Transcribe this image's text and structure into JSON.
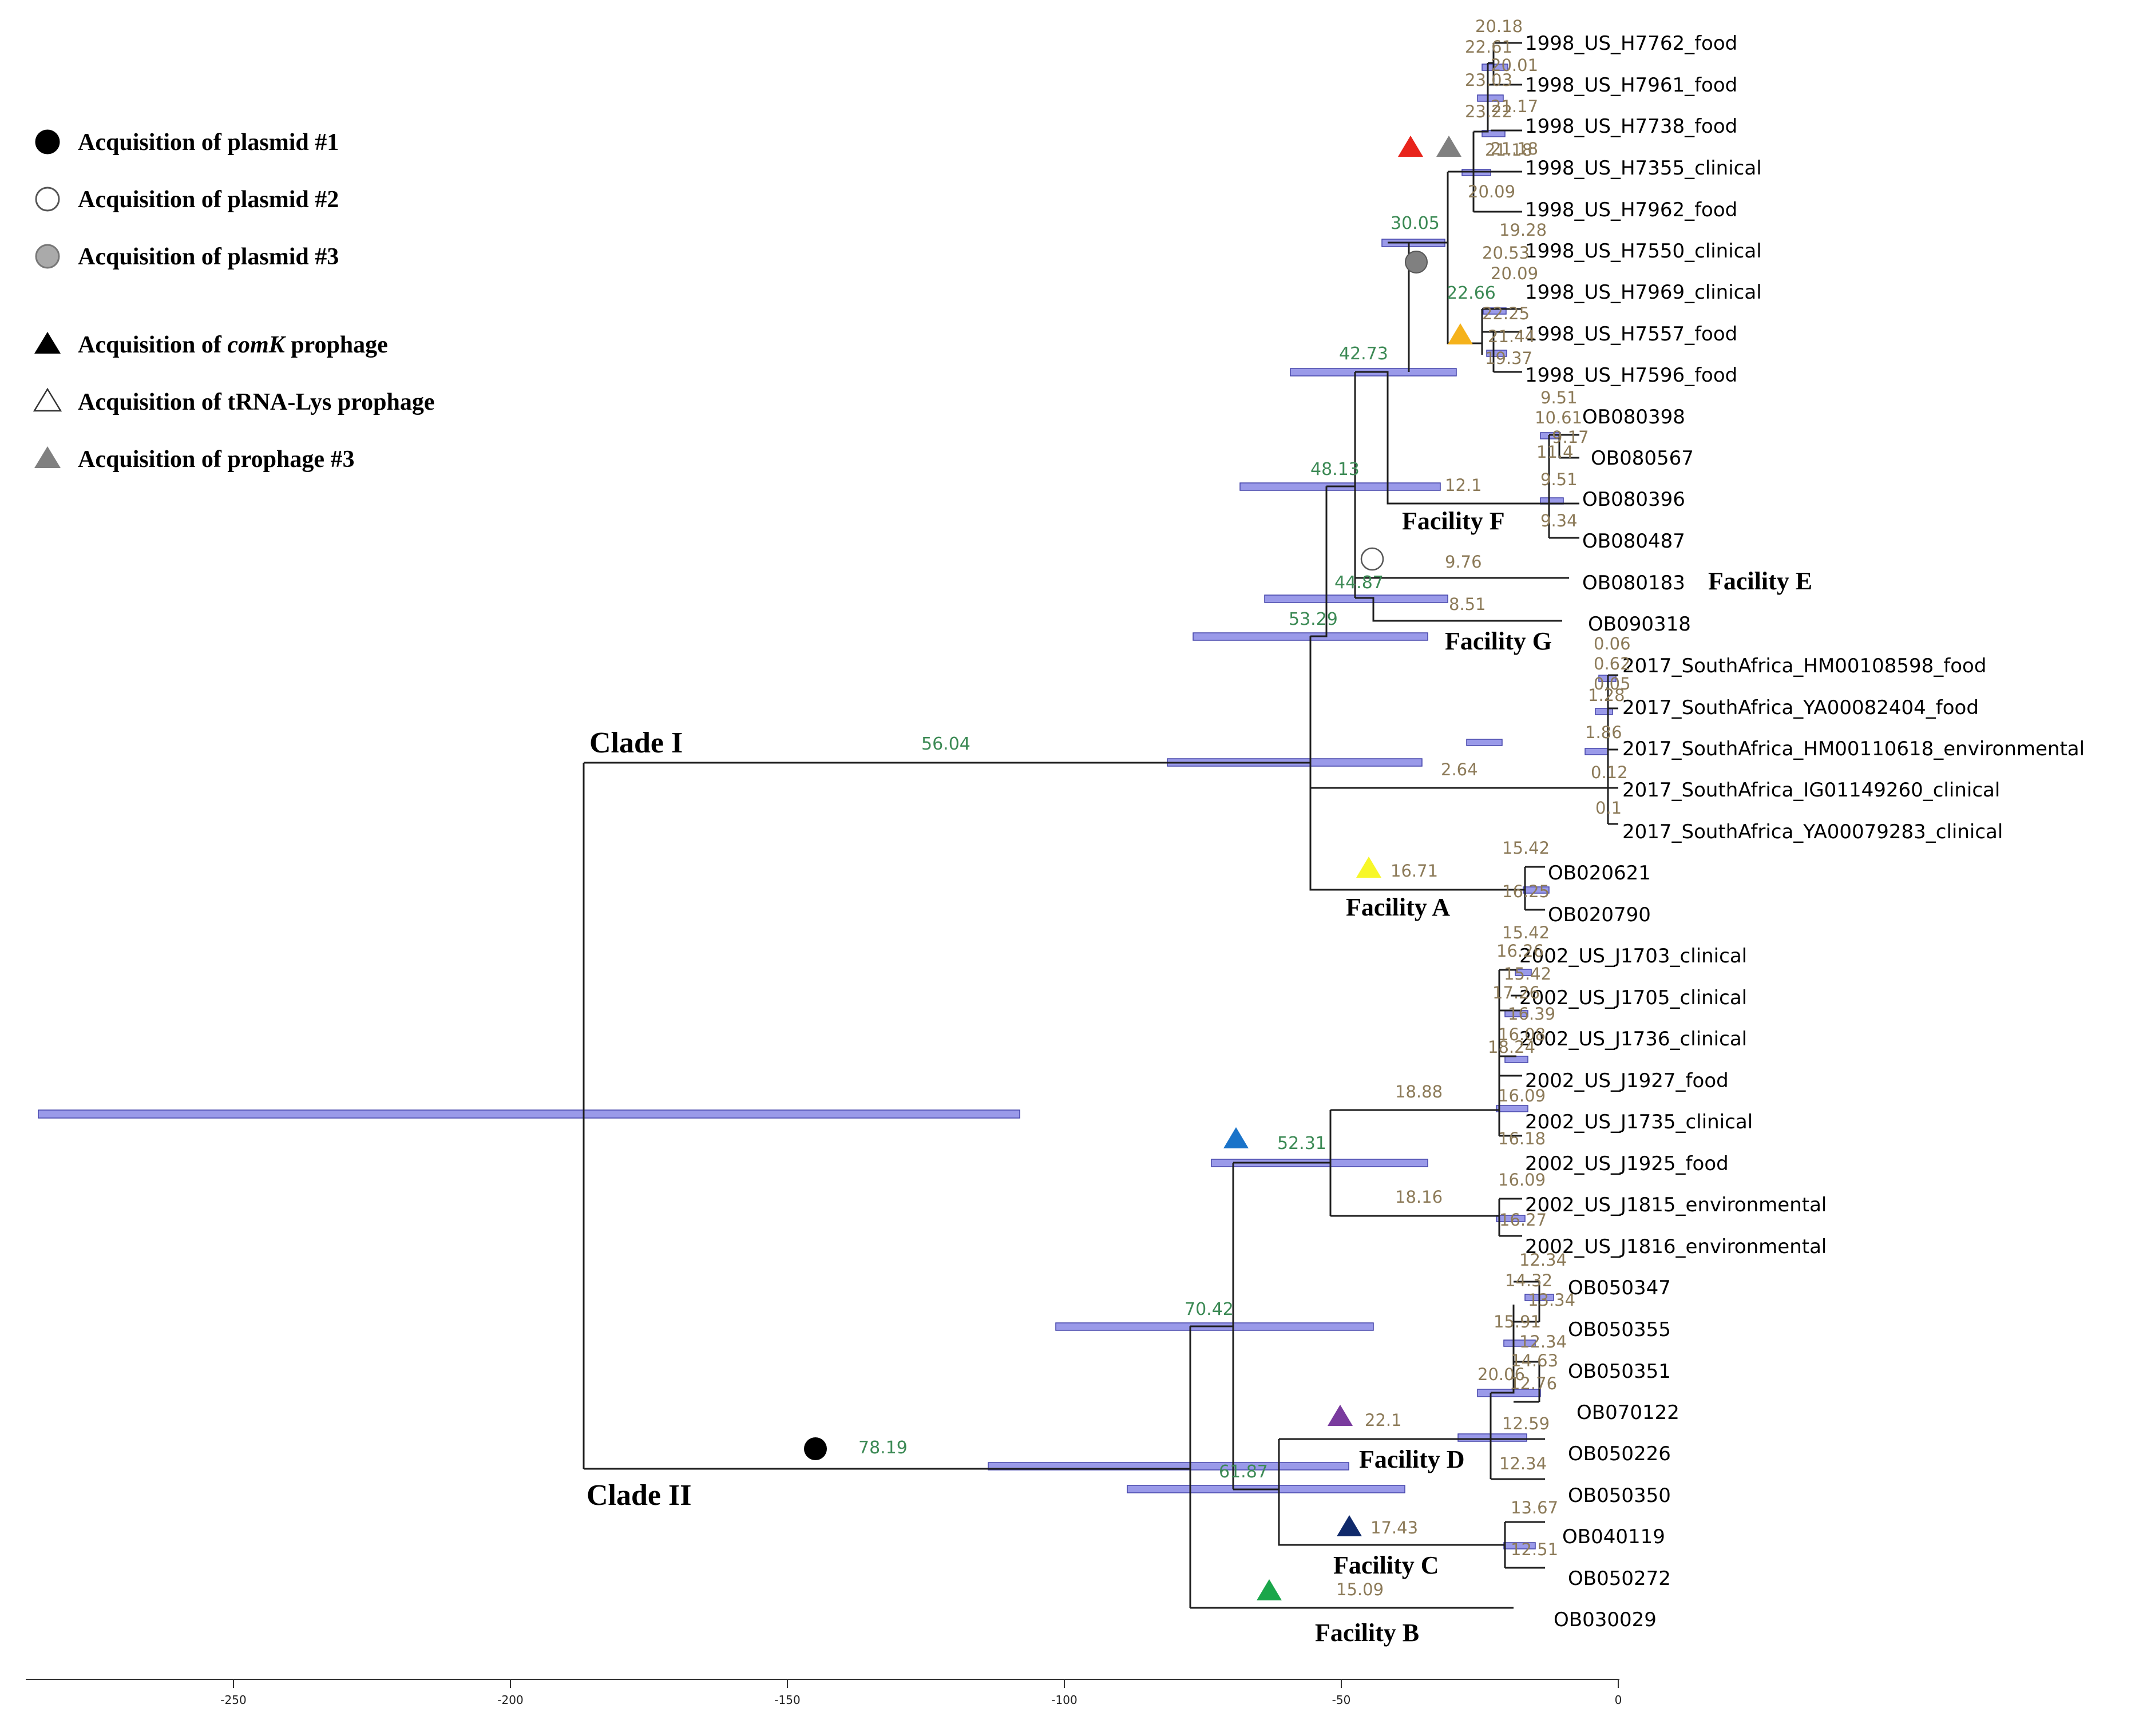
{
  "legend": [
    {
      "id": "plasmid1",
      "symbol": "circle",
      "fill": "#000000",
      "text": "Acquisition of plasmid #1"
    },
    {
      "id": "plasmid2",
      "symbol": "circle",
      "fill": "#ffffff",
      "text": "Acquisition of plasmid #2"
    },
    {
      "id": "plasmid3",
      "symbol": "circle",
      "fill": "#aaaaaa",
      "text": "Acquisition of plasmid #3"
    },
    {
      "id": "comk",
      "symbol": "triangle",
      "fill": "#000000",
      "text_pre": "Acquisition of ",
      "text_em": "comK",
      "text_post": " prophage"
    },
    {
      "id": "trna",
      "symbol": "triangle",
      "fill": "#ffffff",
      "text": "Acquisition of tRNA-Lys prophage"
    },
    {
      "id": "prophage3",
      "symbol": "triangle",
      "fill": "#808080",
      "text": "Acquisition of prophage #3"
    }
  ],
  "clades": {
    "clade1": "Clade I",
    "clade2": "Clade II"
  },
  "facilities": {
    "A": "Facility A",
    "B": "Facility B",
    "C": "Facility C",
    "D": "Facility D",
    "E": "Facility E",
    "F": "Facility F",
    "G": "Facility G"
  },
  "tips": [
    "1998_US_H7762_food",
    "1998_US_H7961_food",
    "1998_US_H7738_food",
    "1998_US_H7355_clinical",
    "1998_US_H7962_food",
    "1998_US_H7550_clinical",
    "1998_US_H7969_clinical",
    "1998_US_H7557_food",
    "1998_US_H7596_food",
    "OB080398",
    "OB080567",
    "OB080396",
    "OB080487",
    "OB080183",
    "OB090318",
    "2017_SouthAfrica_HM00108598_food",
    "2017_SouthAfrica_YA00082404_food",
    "2017_SouthAfrica_HM00110618_environmental",
    "2017_SouthAfrica_IG01149260_clinical",
    "2017_SouthAfrica_YA00079283_clinical",
    "OB020621",
    "OB020790",
    "2002_US_J1703_clinical",
    "2002_US_J1705_clinical",
    "2002_US_J1736_clinical",
    "2002_US_J1927_food",
    "2002_US_J1735_clinical",
    "2002_US_J1925_food",
    "2002_US_J1815_environmental",
    "2002_US_J1816_environmental",
    "OB050347",
    "OB050355",
    "OB050351",
    "OB070122",
    "OB050226",
    "OB050350",
    "OB040119",
    "OB050272",
    "OB030029"
  ],
  "branch_labels": {
    "clade1": "56.04",
    "clade2": "78.19",
    "n70": "70.42",
    "n61": "61.87",
    "n53": "53.29",
    "n52": "52.31",
    "n48": "48.13",
    "n44": "44.87",
    "n42": "42.73",
    "n30": "30.05",
    "facF": "12.1",
    "facE": "9.76",
    "facG": "8.51",
    "sa": "2.64",
    "facA": "16.71",
    "facD": "22.1",
    "facC": "17.43",
    "facB": "15.09",
    "j1": "18.88",
    "j2": "18.16",
    "h2266": "22.66",
    "h1928": "19.28",
    "h2418": "21.18"
  },
  "node_labels": [
    "20.18",
    "22.61",
    "20.01",
    "23.03",
    "21.17",
    "23.22",
    "21.18",
    "20.09",
    "20.53",
    "20.09",
    "22.25",
    "21.44",
    "19.37",
    "9.51",
    "10.61",
    "9.17",
    "11.4",
    "9.51",
    "9.34",
    "0.06",
    "0.62",
    "0.05",
    "1.28",
    "1.86",
    "0.12",
    "0.1",
    "15.42",
    "16.25",
    "15.42",
    "16.26",
    "15.42",
    "17.26",
    "16.39",
    "16.08",
    "18.24",
    "16.09",
    "16.18",
    "16.09",
    "16.27",
    "12.34",
    "14.32",
    "13.34",
    "15.91",
    "12.34",
    "14.63",
    "20.06",
    "12.76",
    "12.59",
    "12.34",
    "13.67",
    "12.51"
  ],
  "colors": {
    "hpd_bar": "#8c8ce6",
    "red": "#e8241c",
    "gray": "#808080",
    "orange": "#f5b21b",
    "yellow": "#f7f728",
    "blue": "#1a73c9",
    "purple": "#7a3b9e",
    "navy": "#102a6b",
    "green": "#1aa64a"
  },
  "axis": {
    "ticks": [
      -250,
      -200,
      -150,
      -100,
      -50,
      0
    ]
  }
}
